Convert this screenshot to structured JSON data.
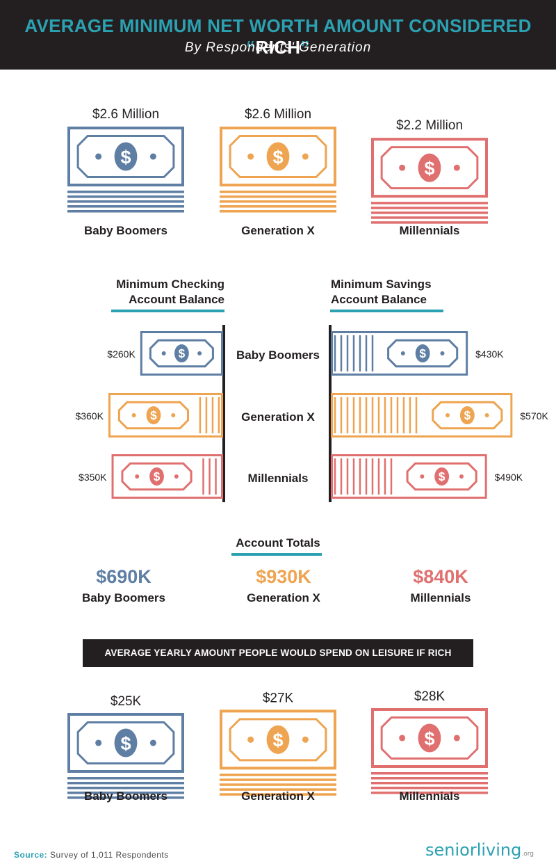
{
  "header": {
    "title_main": "AVERAGE MINIMUM NET WORTH AMOUNT CONSIDERED ",
    "title_open_quote": "“",
    "title_rich": "RICH",
    "title_close_quote": "”",
    "subtitle": "By Respondents' Generation"
  },
  "colors": {
    "baby_boomers": "#5e7ea3",
    "generation_x": "#eea450",
    "millennials": "#e0706f",
    "accent": "#2ba1b2",
    "dark": "#231f20"
  },
  "chart_data": [
    {
      "type": "bar",
      "id": "net_worth",
      "categories": [
        "Baby Boomers",
        "Generation X",
        "Millennials"
      ],
      "values": [
        2.6,
        2.6,
        2.2
      ],
      "value_labels": [
        "$2.6 Million",
        "$2.6 Million",
        "$2.2 Million"
      ],
      "unit": "Million USD"
    },
    {
      "type": "bar",
      "id": "checking_savings",
      "categories": [
        "Baby Boomers",
        "Generation X",
        "Millennials"
      ],
      "series": [
        {
          "name": "Minimum Checking Account Balance",
          "values": [
            260,
            360,
            350
          ],
          "value_labels": [
            "$260K",
            "$360K",
            "$350K"
          ]
        },
        {
          "name": "Minimum Savings Account Balance",
          "values": [
            430,
            570,
            490
          ],
          "value_labels": [
            "$430K",
            "$570K",
            "$490K"
          ]
        }
      ],
      "unit": "Thousand USD"
    },
    {
      "type": "table",
      "id": "account_totals",
      "title": "Account Totals",
      "categories": [
        "Baby Boomers",
        "Generation X",
        "Millennials"
      ],
      "values": [
        690,
        930,
        840
      ],
      "value_labels": [
        "$690K",
        "$930K",
        "$840K"
      ]
    },
    {
      "type": "bar",
      "id": "leisure",
      "title": "AVERAGE YEARLY AMOUNT PEOPLE WOULD SPEND ON LEISURE IF RICH",
      "categories": [
        "Baby Boomers",
        "Generation X",
        "Millennials"
      ],
      "values": [
        25,
        27,
        28
      ],
      "value_labels": [
        "$25K",
        "$27K",
        "$28K"
      ],
      "unit": "Thousand USD"
    }
  ],
  "footer": {
    "source_label": "Source:",
    "source_text": " Survey of 1,011 Respondents",
    "logo_text": "seniorliving",
    "logo_suffix": ".org"
  },
  "icons": [
    "dollar-bill-icon",
    "dollar-sign-icon"
  ]
}
